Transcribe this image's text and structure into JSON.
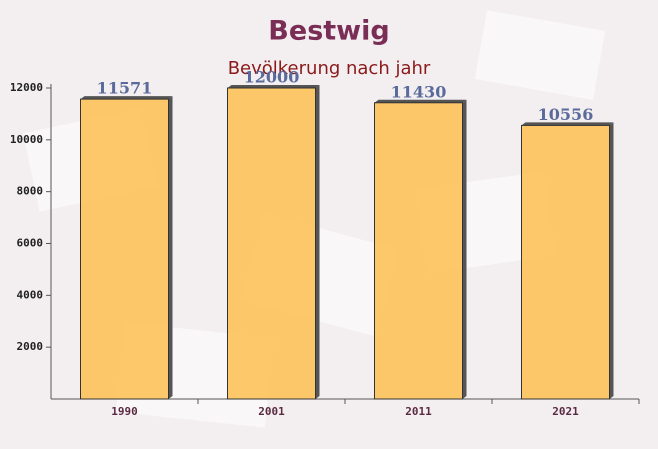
{
  "chart_data": {
    "type": "bar",
    "title": "Bestwig",
    "subtitle": "Bevölkerung nach jahr",
    "categories": [
      "1990",
      "2001",
      "2011",
      "2021"
    ],
    "values": [
      11571,
      12000,
      11430,
      10556
    ],
    "color": "#fdc35c",
    "ylim": [
      0,
      12000
    ],
    "yticks": [
      2000,
      4000,
      6000,
      8000,
      10000,
      12000
    ]
  }
}
